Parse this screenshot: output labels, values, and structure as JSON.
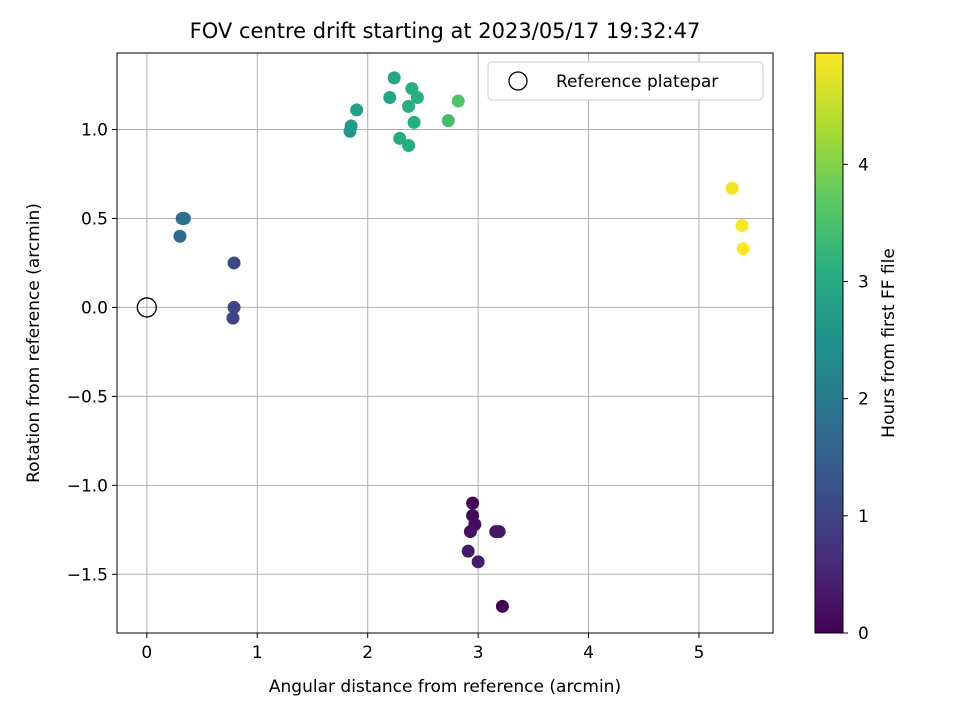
{
  "chart_data": {
    "type": "scatter",
    "title": "FOV centre drift starting at 2023/05/17 19:32:47",
    "xlabel": "Angular distance from reference (arcmin)",
    "ylabel": "Rotation from reference (arcmin)",
    "xlim": [
      -0.27,
      5.67
    ],
    "ylim": [
      -1.83,
      1.43
    ],
    "xticks": [
      0,
      1,
      2,
      3,
      4,
      5
    ],
    "yticks": [
      -1.5,
      -1.0,
      -0.5,
      0.0,
      0.5,
      1.0
    ],
    "xtick_labels": [
      "0",
      "1",
      "2",
      "3",
      "4",
      "5"
    ],
    "ytick_labels": [
      "−1.5",
      "−1.0",
      "−0.5",
      "0.0",
      "0.5",
      "1.0"
    ],
    "grid": true,
    "legend": {
      "position": "top-right",
      "entries": [
        "Reference platepar"
      ]
    },
    "reference_point": {
      "x": 0.0,
      "y": 0.0
    },
    "colorbar": {
      "label": "Hours from first FF file",
      "colormap": "viridis",
      "range": [
        0,
        4.95
      ],
      "ticks": [
        0,
        1,
        2,
        3,
        4
      ],
      "tick_labels": [
        "0",
        "1",
        "2",
        "3",
        "4"
      ]
    },
    "points": [
      {
        "x": 2.95,
        "y": -1.1,
        "hours": 0.05
      },
      {
        "x": 2.95,
        "y": -1.17,
        "hours": 0.1
      },
      {
        "x": 2.97,
        "y": -1.22,
        "hours": 0.15
      },
      {
        "x": 2.93,
        "y": -1.26,
        "hours": 0.2
      },
      {
        "x": 3.16,
        "y": -1.26,
        "hours": 0.25
      },
      {
        "x": 3.19,
        "y": -1.26,
        "hours": 0.3
      },
      {
        "x": 2.91,
        "y": -1.37,
        "hours": 0.35
      },
      {
        "x": 3.0,
        "y": -1.43,
        "hours": 0.4
      },
      {
        "x": 3.22,
        "y": -1.68,
        "hours": 0.0
      },
      {
        "x": 0.79,
        "y": 0.25,
        "hours": 1.1
      },
      {
        "x": 0.79,
        "y": 0.0,
        "hours": 1.05
      },
      {
        "x": 0.78,
        "y": -0.06,
        "hours": 1.0
      },
      {
        "x": 0.3,
        "y": 0.4,
        "hours": 1.7
      },
      {
        "x": 0.32,
        "y": 0.5,
        "hours": 1.75
      },
      {
        "x": 0.34,
        "y": 0.5,
        "hours": 1.8
      },
      {
        "x": 1.84,
        "y": 0.99,
        "hours": 2.6
      },
      {
        "x": 1.85,
        "y": 1.02,
        "hours": 2.65
      },
      {
        "x": 1.9,
        "y": 1.11,
        "hours": 2.75
      },
      {
        "x": 2.2,
        "y": 1.18,
        "hours": 2.9
      },
      {
        "x": 2.24,
        "y": 1.29,
        "hours": 2.95
      },
      {
        "x": 2.29,
        "y": 0.95,
        "hours": 3.0
      },
      {
        "x": 2.37,
        "y": 0.91,
        "hours": 3.0
      },
      {
        "x": 2.37,
        "y": 1.13,
        "hours": 3.05
      },
      {
        "x": 2.4,
        "y": 1.23,
        "hours": 3.05
      },
      {
        "x": 2.42,
        "y": 1.04,
        "hours": 3.1
      },
      {
        "x": 2.45,
        "y": 1.18,
        "hours": 3.1
      },
      {
        "x": 2.73,
        "y": 1.05,
        "hours": 3.4
      },
      {
        "x": 2.82,
        "y": 1.16,
        "hours": 3.55
      },
      {
        "x": 5.3,
        "y": 0.67,
        "hours": 4.85
      },
      {
        "x": 5.39,
        "y": 0.46,
        "hours": 4.9
      },
      {
        "x": 5.4,
        "y": 0.33,
        "hours": 4.95
      }
    ]
  }
}
